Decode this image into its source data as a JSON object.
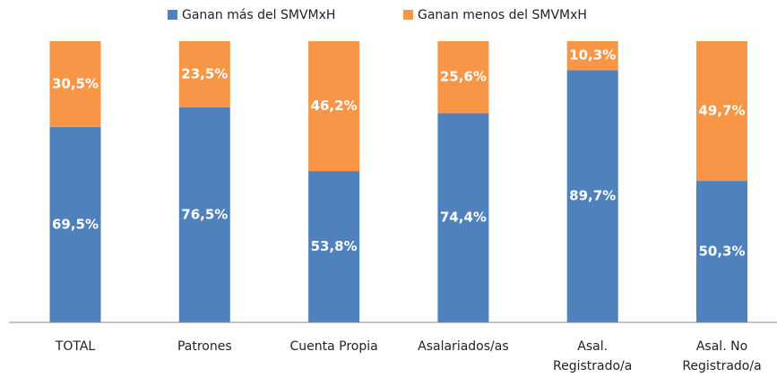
{
  "chart_data": {
    "type": "stacked_bar",
    "categories": [
      "TOTAL",
      "Patrones",
      "Cuenta Propia",
      "Asalariados/as",
      "Asal.\nRegistrado/a",
      "Asal. No\nRegistrado/a"
    ],
    "series": [
      {
        "name": "Ganan más del SMVMxH",
        "color": "#4f81bd",
        "values": [
          69.5,
          76.5,
          53.8,
          74.4,
          89.7,
          50.3
        ],
        "value_labels": [
          "69,5%",
          "76,5%",
          "53,8%",
          "74,4%",
          "89,7%",
          "50,3%"
        ]
      },
      {
        "name": "Ganan menos del SMVMxH",
        "color": "#f79646",
        "values": [
          30.5,
          23.5,
          46.2,
          25.6,
          10.3,
          49.7
        ],
        "value_labels": [
          "30,5%",
          "23,5%",
          "46,2%",
          "25,6%",
          "10,3%",
          "49,7%"
        ]
      }
    ],
    "ylim": [
      0,
      100
    ],
    "legend": "top"
  }
}
